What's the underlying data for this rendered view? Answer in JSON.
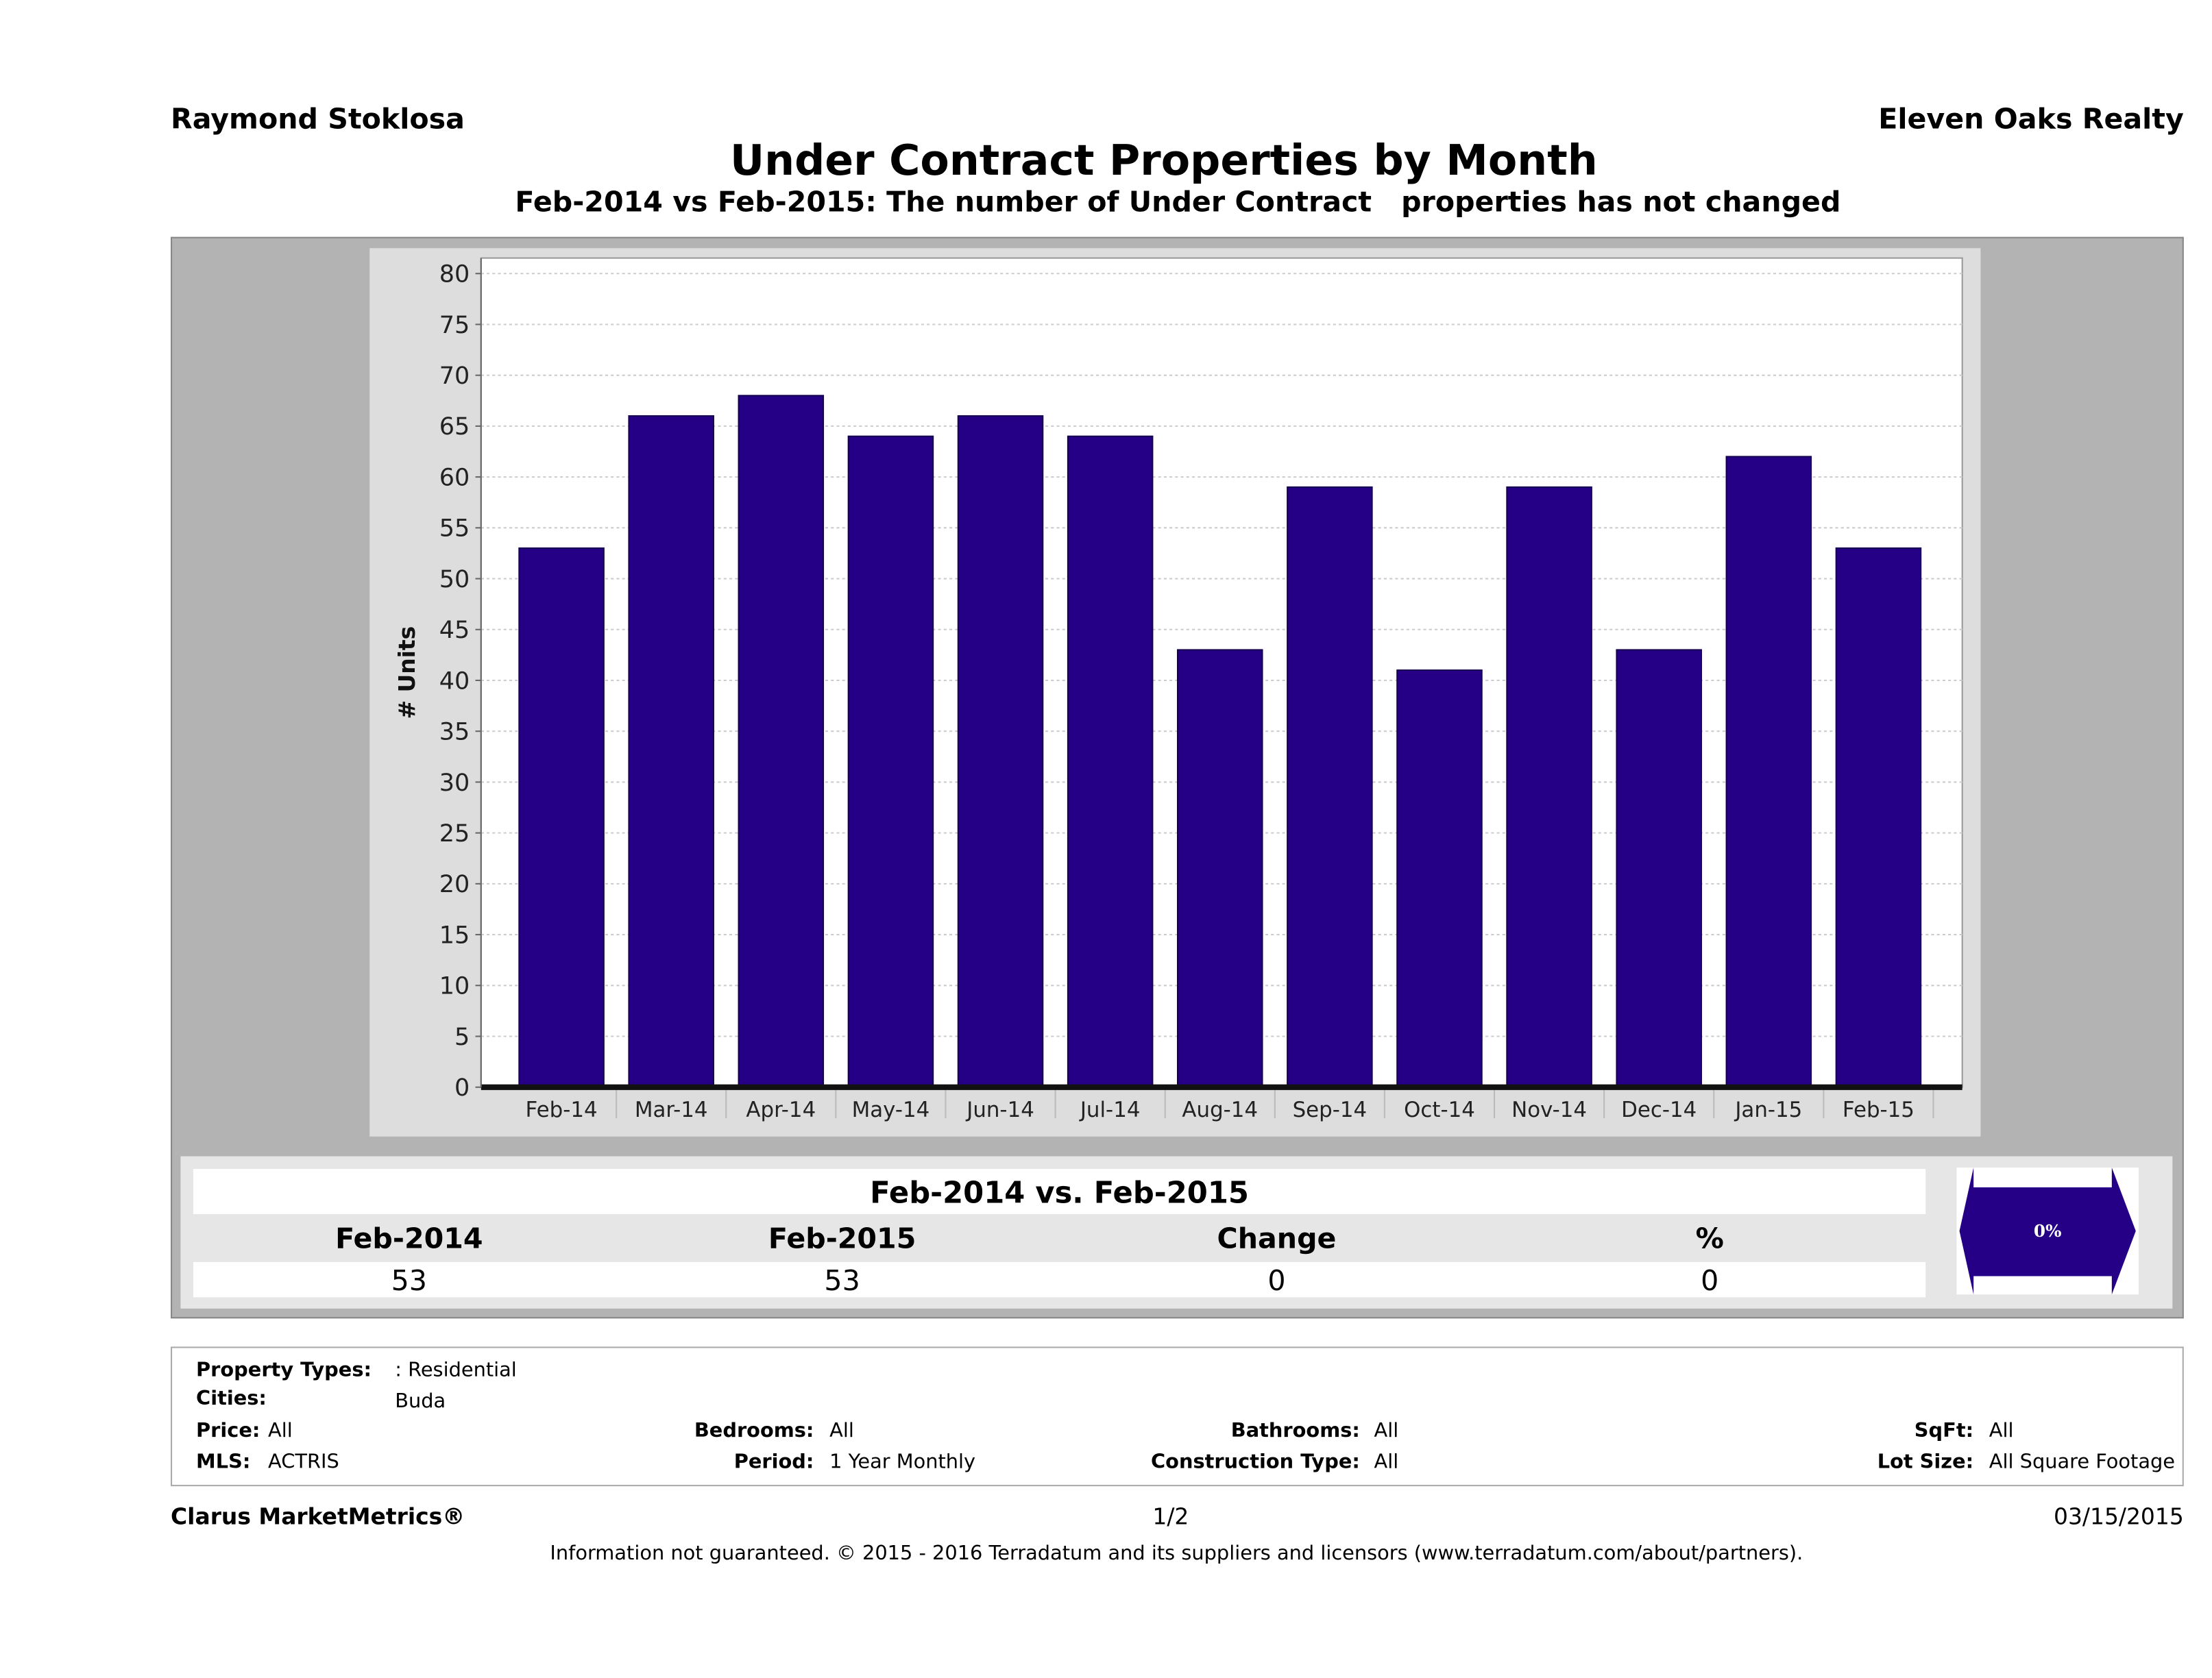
{
  "header": {
    "agent": "Raymond Stoklosa",
    "company": "Eleven Oaks Realty"
  },
  "chart_data": {
    "type": "bar",
    "title": "Under Contract Properties by Month",
    "subtitle": "Feb-2014 vs Feb-2015: The number of Under Contract   properties has not changed",
    "xlabel": "",
    "ylabel": "# Units",
    "ylim": [
      0,
      80
    ],
    "yticks": [
      0,
      5,
      10,
      15,
      20,
      25,
      30,
      35,
      40,
      45,
      50,
      55,
      60,
      65,
      70,
      75,
      80
    ],
    "grid": true,
    "bar_color": "#250087",
    "categories": [
      "Feb-14",
      "Mar-14",
      "Apr-14",
      "May-14",
      "Jun-14",
      "Jul-14",
      "Aug-14",
      "Sep-14",
      "Oct-14",
      "Nov-14",
      "Dec-14",
      "Jan-15",
      "Feb-15"
    ],
    "values": [
      53,
      66,
      68,
      64,
      66,
      64,
      43,
      59,
      41,
      59,
      43,
      62,
      53
    ]
  },
  "summary": {
    "heading": "Feb-2014 vs. Feb-2015",
    "columns": [
      "Feb-2014",
      "Feb-2015",
      "Change",
      "%"
    ],
    "values": [
      "53",
      "53",
      "0",
      "0"
    ],
    "badge": "0%",
    "badge_icon": "double-arrow-icon"
  },
  "criteria": {
    "property_types_label": "Property Types:",
    "property_types": ": Residential",
    "cities_label": "Cities:",
    "cities": "Buda",
    "price_label": "Price:",
    "price": "All",
    "mls_label": "MLS:",
    "mls": "ACTRIS",
    "bedrooms_label": "Bedrooms:",
    "bedrooms": "All",
    "period_label": "Period:",
    "period": "1 Year Monthly",
    "bathrooms_label": "Bathrooms:",
    "bathrooms": "All",
    "construction_label": "Construction Type:",
    "construction": "All",
    "sqft_label": "SqFt:",
    "sqft": "All",
    "lot_label": "Lot Size:",
    "lot": "All Square Footage"
  },
  "footer": {
    "brand": "Clarus MarketMetrics®",
    "page": "1/2",
    "date": "03/15/2015",
    "disclaimer": "Information not guaranteed. © 2015 - 2016 Terradatum and its suppliers and licensors (www.terradatum.com/about/partners)."
  }
}
